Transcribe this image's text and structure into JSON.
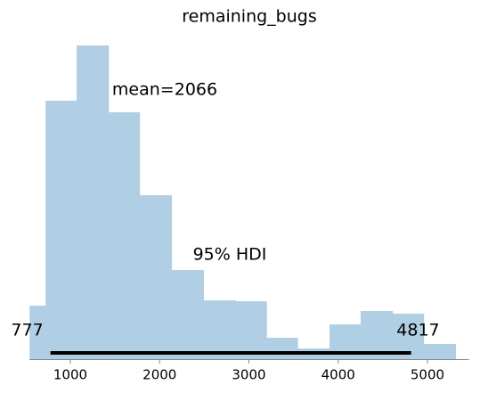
{
  "chart_data": {
    "type": "histogram",
    "title": "remaining_bugs",
    "bins": [
      543,
      722,
      1070,
      1427,
      1775,
      2133,
      2491,
      2849,
      3197,
      3545,
      3903,
      4251,
      4609,
      4957,
      5315
    ],
    "values": [
      60,
      290,
      352,
      277,
      184,
      100,
      66,
      65,
      24,
      12,
      39,
      54,
      51,
      17
    ],
    "color": "#b0cfe5",
    "xlim": [
      543,
      5465
    ],
    "xticks": [
      1000,
      2000,
      3000,
      4000,
      5000
    ],
    "ylim": [
      0,
      365
    ],
    "mean_label": "mean=2066",
    "hdi_label": "95% HDI",
    "hdi": [
      777,
      4817
    ]
  }
}
